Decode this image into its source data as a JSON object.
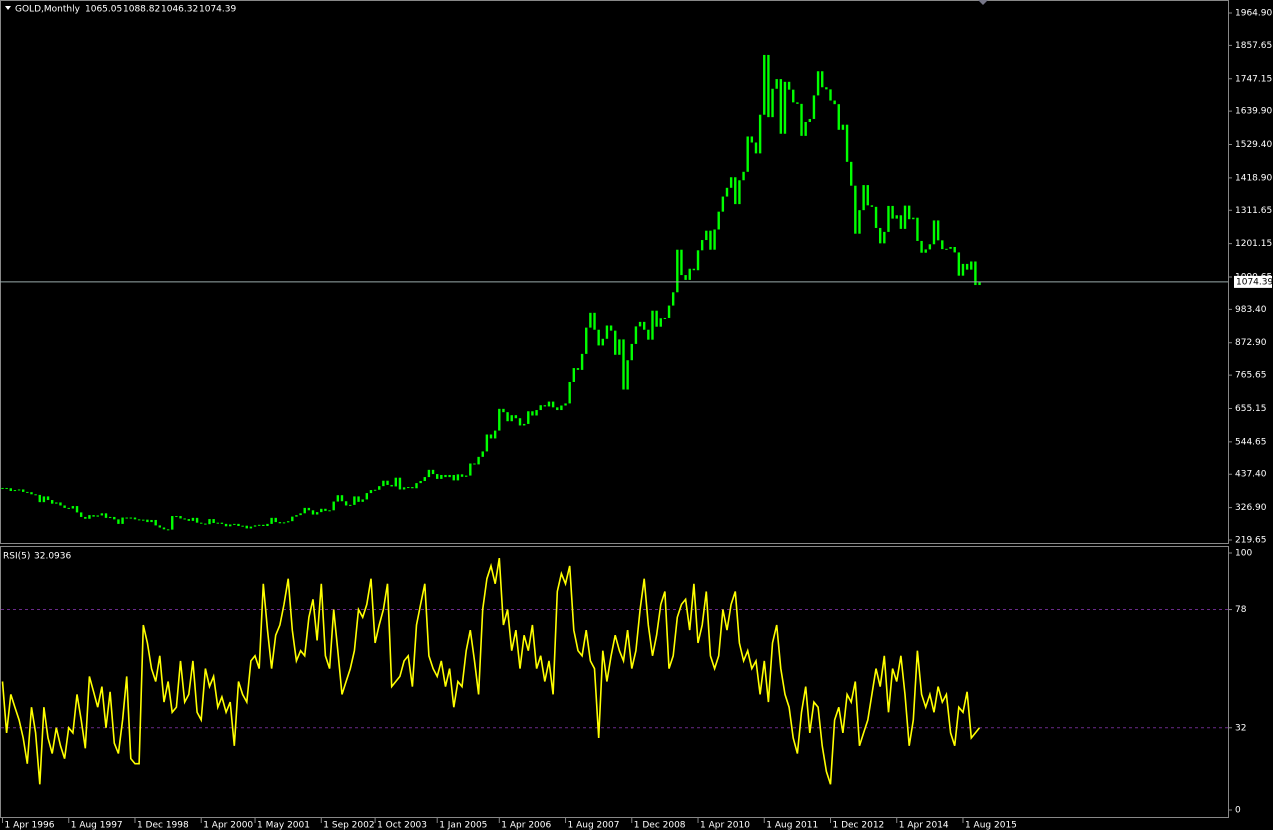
{
  "chart_data": [
    {
      "type": "candlestick",
      "title": "GOLD,Monthly",
      "ohlc_last": [
        1065.05,
        1088.82,
        1046.32,
        1074.39
      ],
      "current_price": 1074.39,
      "color": "#00ff00",
      "ylim": [
        219.65,
        1964.9
      ],
      "yticks": [
        {
          "value": 1964.9,
          "label": "1964.90"
        },
        {
          "value": 1857.65,
          "label": "1857.65"
        },
        {
          "value": 1747.15,
          "label": "1747.15"
        },
        {
          "value": 1639.9,
          "label": "1639.90"
        },
        {
          "value": 1529.4,
          "label": "1529.40"
        },
        {
          "value": 1418.9,
          "label": "1418.90"
        },
        {
          "value": 1311.65,
          "label": "1311.65"
        },
        {
          "value": 1201.15,
          "label": "1201.15"
        },
        {
          "value": 1090.65,
          "label": "1090.65"
        },
        {
          "value": 983.4,
          "label": "983.40"
        },
        {
          "value": 872.9,
          "label": "872.90"
        },
        {
          "value": 765.65,
          "label": "765.65"
        },
        {
          "value": 655.15,
          "label": "655.15"
        },
        {
          "value": 544.65,
          "label": "544.65"
        },
        {
          "value": 437.4,
          "label": "437.40"
        },
        {
          "value": 326.9,
          "label": "326.90"
        },
        {
          "value": 219.65,
          "label": "219.65"
        }
      ],
      "categories": [
        "1 Apr 1996",
        null,
        null,
        null,
        null,
        null,
        null,
        null,
        null,
        null,
        null,
        null,
        null,
        null,
        null,
        null,
        "1 Aug 1997",
        null,
        null,
        null,
        null,
        null,
        null,
        null,
        null,
        null,
        null,
        null,
        null,
        null,
        null,
        null,
        "1 Dec 1998",
        null,
        null,
        null,
        null,
        null,
        null,
        null,
        null,
        null,
        null,
        null,
        null,
        null,
        null,
        null,
        "1 Apr 2000",
        null,
        null,
        null,
        null,
        null,
        null,
        null,
        null,
        null,
        null,
        null,
        null,
        "1 May 2001",
        null,
        null,
        null,
        null,
        null,
        null,
        null,
        null,
        null,
        null,
        null,
        null,
        null,
        null,
        null,
        "1 Sep 2002",
        null,
        null,
        null,
        null,
        null,
        null,
        null,
        null,
        null,
        null,
        null,
        null,
        "1 Oct 2003",
        null,
        null,
        null,
        null,
        null,
        null,
        null,
        null,
        null,
        null,
        null,
        null,
        null,
        null,
        "1 Jan 2005",
        null,
        null,
        null,
        null,
        null,
        null,
        null,
        null,
        null,
        null,
        null,
        null,
        null,
        null,
        "1 Apr 2006",
        null,
        null,
        null,
        null,
        null,
        null,
        null,
        null,
        null,
        null,
        null,
        null,
        null,
        null,
        null,
        "1 Aug 2007",
        null,
        null,
        null,
        null,
        null,
        null,
        null,
        null,
        null,
        null,
        null,
        null,
        null,
        null,
        null,
        "1 Dec 2008",
        null,
        null,
        null,
        null,
        null,
        null,
        null,
        null,
        null,
        null,
        null,
        null,
        null,
        null,
        null,
        "1 Apr 2010",
        null,
        null,
        null,
        null,
        null,
        null,
        null,
        null,
        null,
        null,
        null,
        null,
        null,
        null,
        null,
        "1 Aug 2011",
        null,
        null,
        null,
        null,
        null,
        null,
        null,
        null,
        null,
        null,
        null,
        null,
        null,
        null,
        null,
        "1 Dec 2012",
        null,
        null,
        null,
        null,
        null,
        null,
        null,
        null,
        null,
        null,
        null,
        null,
        null,
        null,
        null,
        "1 Apr 2014",
        null,
        null,
        null,
        null,
        null,
        null,
        null,
        null,
        null,
        null,
        null,
        null,
        null,
        null,
        null,
        "1 Aug 2015",
        null,
        null,
        null,
        null
      ],
      "values": [
        392,
        391,
        382,
        385,
        387,
        379,
        378,
        371,
        369,
        345,
        364,
        352,
        340,
        344,
        334,
        326,
        324,
        332,
        311,
        296,
        290,
        302,
        297,
        301,
        308,
        293,
        296,
        288,
        273,
        294,
        292,
        294,
        288,
        287,
        287,
        279,
        286,
        268,
        261,
        255,
        254,
        299,
        299,
        291,
        289,
        283,
        293,
        277,
        274,
        272,
        289,
        276,
        277,
        273,
        265,
        271,
        273,
        266,
        267,
        258,
        264,
        268,
        270,
        266,
        273,
        293,
        279,
        275,
        278,
        282,
        297,
        302,
        308,
        326,
        318,
        304,
        312,
        323,
        316,
        318,
        347,
        368,
        348,
        334,
        336,
        364,
        346,
        354,
        375,
        385,
        386,
        398,
        416,
        402,
        397,
        426,
        387,
        394,
        395,
        391,
        408,
        415,
        428,
        452,
        438,
        422,
        435,
        428,
        435,
        417,
        437,
        429,
        433,
        473,
        470,
        495,
        513,
        569,
        556,
        582,
        654,
        643,
        613,
        633,
        623,
        599,
        604,
        646,
        632,
        650,
        666,
        662,
        678,
        659,
        650,
        665,
        672,
        743,
        789,
        783,
        836,
        923,
        972,
        916,
        864,
        886,
        930,
        913,
        833,
        884,
        718,
        815,
        869,
        927,
        942,
        916,
        883,
        979,
        926,
        954,
        955,
        996,
        1040,
        1181,
        1097,
        1081,
        1118,
        1113,
        1179,
        1213,
        1244,
        1181,
        1248,
        1307,
        1357,
        1386,
        1421,
        1332,
        1411,
        1439,
        1556,
        1536,
        1500,
        1628,
        1826,
        1620,
        1714,
        1746,
        1565,
        1737,
        1711,
        1669,
        1664,
        1558,
        1604,
        1614,
        1692,
        1772,
        1719,
        1712,
        1675,
        1663,
        1578,
        1595,
        1472,
        1393,
        1234,
        1312,
        1395,
        1328,
        1323,
        1253,
        1202,
        1240,
        1326,
        1284,
        1295,
        1250,
        1327,
        1282,
        1287,
        1210,
        1171,
        1182,
        1199,
        1278,
        1212,
        1183,
        1184,
        1190,
        1172,
        1095,
        1134,
        1115,
        1142,
        1064,
        1074
      ]
    },
    {
      "type": "line",
      "title": "RSI(5)",
      "last_value": 32.0936,
      "color": "#ffff00",
      "ylim": [
        0,
        100
      ],
      "yticks": [
        0,
        32,
        78,
        100
      ],
      "levels": [
        32,
        78
      ],
      "level_color": "#6a2a8a",
      "values": [
        50,
        30,
        45,
        40,
        35,
        28,
        18,
        40,
        30,
        10,
        40,
        28,
        22,
        32,
        25,
        20,
        32,
        30,
        45,
        35,
        24,
        52,
        46,
        40,
        48,
        32,
        46,
        26,
        22,
        35,
        52,
        20,
        18,
        18,
        72,
        65,
        55,
        50,
        60,
        42,
        50,
        38,
        40,
        58,
        42,
        45,
        58,
        38,
        35,
        55,
        48,
        52,
        40,
        44,
        38,
        42,
        25,
        50,
        45,
        42,
        58,
        60,
        55,
        88,
        70,
        55,
        68,
        72,
        80,
        90,
        70,
        58,
        62,
        60,
        75,
        82,
        66,
        88,
        60,
        55,
        78,
        62,
        45,
        50,
        55,
        62,
        78,
        75,
        80,
        90,
        65,
        72,
        78,
        88,
        48,
        50,
        52,
        58,
        60,
        48,
        72,
        80,
        88,
        60,
        55,
        52,
        58,
        48,
        55,
        40,
        50,
        48,
        62,
        70,
        58,
        45,
        78,
        90,
        95,
        88,
        98,
        72,
        78,
        62,
        70,
        55,
        68,
        62,
        72,
        55,
        60,
        50,
        58,
        45,
        85,
        92,
        88,
        95,
        70,
        62,
        60,
        70,
        58,
        55,
        28,
        62,
        50,
        60,
        68,
        62,
        58,
        70,
        55,
        62,
        78,
        90,
        72,
        60,
        68,
        80,
        85,
        55,
        60,
        75,
        80,
        82,
        70,
        88,
        65,
        72,
        85,
        60,
        55,
        60,
        78,
        70,
        80,
        85,
        65,
        58,
        62,
        55,
        58,
        45,
        58,
        42,
        65,
        72,
        55,
        45,
        40,
        28,
        22,
        38,
        48,
        30,
        42,
        40,
        25,
        15,
        10,
        35,
        40,
        30,
        45,
        42,
        50,
        25,
        30,
        35,
        45,
        55,
        48,
        60,
        38,
        55,
        50,
        60,
        45,
        25,
        35,
        62,
        45,
        40,
        45,
        38,
        48,
        42,
        45,
        30,
        25,
        40,
        38,
        46,
        28,
        30,
        32
      ]
    }
  ]
}
